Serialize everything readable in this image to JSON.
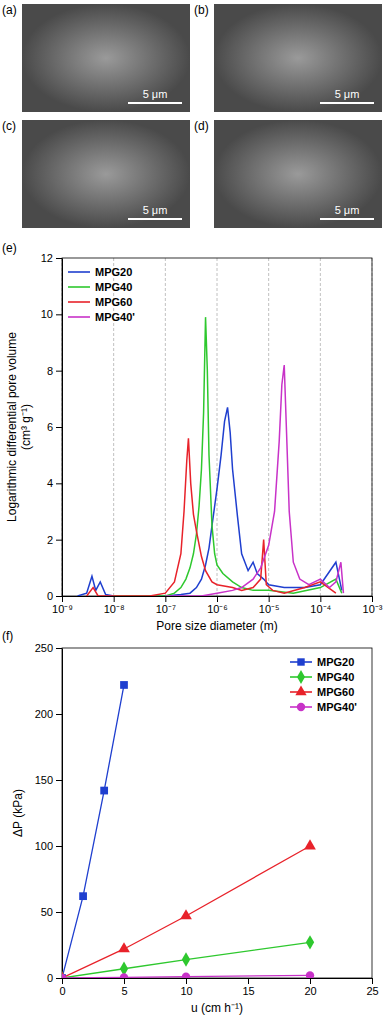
{
  "images": [
    {
      "label": "(a)",
      "scale_bar": "5 μm"
    },
    {
      "label": "(b)",
      "scale_bar": "5 μm"
    },
    {
      "label": "(c)",
      "scale_bar": "5 μm"
    },
    {
      "label": "(d)",
      "scale_bar": "5 μm"
    }
  ],
  "chart_data": [
    {
      "type": "line",
      "panel": "(e)",
      "log": "x",
      "grid": "x",
      "legend": "upper left",
      "xlabel": "Pore size diameter (m)",
      "ylabel": [
        "Logarithmic differential pore volume",
        "(cm³ g⁻¹)"
      ],
      "xlim": [
        1e-09,
        0.001
      ],
      "xticks": [
        {
          "value": 1e-09,
          "label": "10⁻⁹"
        },
        {
          "value": 1e-08,
          "label": "10⁻⁸"
        },
        {
          "value": 1e-07,
          "label": "10⁻⁷"
        },
        {
          "value": 1e-06,
          "label": "10⁻⁶"
        },
        {
          "value": 1e-05,
          "label": "10⁻⁵"
        },
        {
          "value": 0.0001,
          "label": "10⁻⁴"
        },
        {
          "value": 0.001,
          "label": "10⁻³"
        }
      ],
      "ylim": [
        0,
        12
      ],
      "yticks": [
        0,
        2,
        4,
        6,
        8,
        10,
        12
      ],
      "series": [
        {
          "name": "MPG20",
          "color": "#1f3fcf",
          "x": [
            2e-09,
            3e-09,
            3.8e-09,
            4.5e-09,
            5.5e-09,
            7e-09,
            1e-08,
            3e-08,
            1e-07,
            2e-07,
            3e-07,
            4e-07,
            5e-07,
            6e-07,
            7e-07,
            8e-07,
            1e-06,
            1.2e-06,
            1.4e-06,
            1.6e-06,
            1.8e-06,
            2e-06,
            2.5e-06,
            3e-06,
            4e-06,
            5e-06,
            6e-06,
            8e-06,
            1e-05,
            2e-05,
            5e-05,
            0.0001,
            0.0002,
            0.00026
          ],
          "values": [
            0,
            0.1,
            0.7,
            0.2,
            0.5,
            0.05,
            0,
            0,
            0,
            0.05,
            0.1,
            0.3,
            0.6,
            1.1,
            1.7,
            2.5,
            3.8,
            5.0,
            6.2,
            6.7,
            5.8,
            4.5,
            2.8,
            1.5,
            0.9,
            1.2,
            0.8,
            0.6,
            0.4,
            0.3,
            0.3,
            0.4,
            1.2,
            0.2
          ]
        },
        {
          "name": "MPG40",
          "color": "#2ec82e",
          "x": [
            1e-08,
            1e-07,
            1.5e-07,
            2e-07,
            2.5e-07,
            3e-07,
            3.5e-07,
            4e-07,
            4.5e-07,
            5e-07,
            5.5e-07,
            6e-07,
            6.5e-07,
            7e-07,
            8e-07,
            9e-07,
            1e-06,
            1.3e-06,
            2e-06,
            3e-06,
            5e-06,
            1e-05,
            3e-05,
            0.0001,
            0.0002,
            0.00026
          ],
          "values": [
            0,
            0,
            0.1,
            0.3,
            0.6,
            1.0,
            1.5,
            2.2,
            3.2,
            4.5,
            6.5,
            9.9,
            8.0,
            5.0,
            2.5,
            1.5,
            1.1,
            0.8,
            0.5,
            0.3,
            0.2,
            0.2,
            0.1,
            0.3,
            0.6,
            0.1
          ]
        },
        {
          "name": "MPG60",
          "color": "#e8222a",
          "x": [
            3e-09,
            4e-09,
            5e-09,
            1e-08,
            5e-08,
            1e-07,
            1.5e-07,
            2e-07,
            2.3e-07,
            2.6e-07,
            2.8e-07,
            3.1e-07,
            3.5e-07,
            4e-07,
            5e-07,
            6e-07,
            8e-07,
            1e-06,
            2e-06,
            3e-06,
            5e-06,
            7e-06,
            8e-06,
            9e-06,
            1.2e-05,
            2e-05,
            5e-05,
            0.0001,
            0.0002
          ],
          "values": [
            0,
            0.3,
            0,
            0,
            0,
            0.1,
            0.5,
            1.5,
            3.0,
            4.8,
            5.6,
            4.0,
            2.9,
            2.3,
            1.4,
            0.9,
            0.5,
            0.4,
            0.3,
            0.2,
            0.3,
            0.6,
            2.0,
            0.4,
            0.2,
            0.1,
            0.3,
            0.5,
            0.1
          ]
        },
        {
          "name": "MPG40'",
          "color": "#c832c8",
          "x": [
            1e-07,
            5e-07,
            1e-06,
            2e-06,
            3e-06,
            5e-06,
            7e-06,
            1e-05,
            1.3e-05,
            1.6e-05,
            1.8e-05,
            2e-05,
            2.2e-05,
            2.5e-05,
            3e-05,
            4e-05,
            6e-05,
            0.0001,
            0.00015,
            0.0002,
            0.00025,
            0.00028
          ],
          "values": [
            0,
            0,
            0.1,
            0.2,
            0.3,
            0.6,
            1.0,
            1.8,
            3.0,
            5.5,
            7.5,
            8.2,
            6.0,
            3.0,
            1.2,
            0.6,
            0.4,
            0.6,
            0.3,
            0.5,
            1.2,
            0.1
          ]
        }
      ]
    },
    {
      "type": "line",
      "panel": "(f)",
      "legend": "upper right",
      "xlabel": "u (cm h⁻¹)",
      "ylabel": [
        "ΔP (kPa)"
      ],
      "xlim": [
        0,
        25
      ],
      "xticks": [
        0,
        5,
        10,
        15,
        20,
        25
      ],
      "ylim": [
        0,
        250
      ],
      "yticks": [
        0,
        50,
        100,
        150,
        200,
        250
      ],
      "series": [
        {
          "name": "MPG20",
          "color": "#1f3fcf",
          "marker": "square",
          "x": [
            0,
            1.7,
            3.4,
            5
          ],
          "values": [
            0,
            62,
            142,
            222
          ]
        },
        {
          "name": "MPG40",
          "color": "#2ec82e",
          "marker": "diamond",
          "x": [
            0,
            5,
            10,
            20
          ],
          "values": [
            0,
            7,
            14,
            27
          ]
        },
        {
          "name": "MPG60",
          "color": "#e8222a",
          "marker": "triangle",
          "x": [
            0,
            5,
            10,
            20
          ],
          "values": [
            0,
            22,
            47,
            100
          ]
        },
        {
          "name": "MPG40'",
          "color": "#c832c8",
          "marker": "circle",
          "x": [
            0,
            5,
            10,
            20
          ],
          "values": [
            0,
            0.5,
            1,
            2
          ]
        }
      ]
    }
  ]
}
